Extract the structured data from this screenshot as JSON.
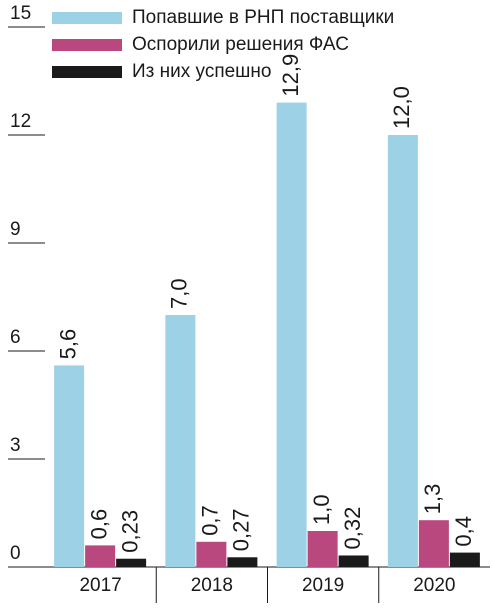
{
  "chart_data": {
    "type": "bar",
    "categories": [
      "2017",
      "2018",
      "2019",
      "2020"
    ],
    "series": [
      {
        "name": "Попавшие в РНП поставщики",
        "color": "#9dd1e6",
        "values": [
          5.6,
          7.0,
          12.9,
          12.0
        ],
        "value_labels": [
          "5,6",
          "7,0",
          "12,9",
          "12,0"
        ]
      },
      {
        "name": "Оспорили решения ФАС",
        "color": "#b8487e",
        "values": [
          0.6,
          0.7,
          1.0,
          1.3
        ],
        "value_labels": [
          "0,6",
          "0,7",
          "1,0",
          "1,3"
        ]
      },
      {
        "name": "Из них успешно",
        "color": "#1a1a1a",
        "values": [
          0.23,
          0.27,
          0.32,
          0.4
        ],
        "value_labels": [
          "0,23",
          "0,27",
          "0,32",
          "0,4"
        ]
      }
    ],
    "ylim": [
      0,
      15
    ],
    "yticks": [
      0,
      3,
      6,
      9,
      12,
      15
    ]
  }
}
